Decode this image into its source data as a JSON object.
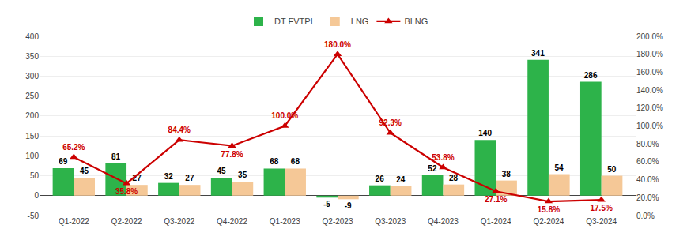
{
  "chart_data": {
    "type": "bar",
    "categories": [
      "Q1-2022",
      "Q2-2022",
      "Q3-2022",
      "Q4-2022",
      "Q1-2023",
      "Q2-2023",
      "Q3-2023",
      "Q4-2023",
      "Q1-2024",
      "Q2-2024",
      "Q3-2024"
    ],
    "series": [
      {
        "name": "DT FVTPL",
        "type": "bar",
        "color": "#2DB34A",
        "values": [
          69,
          81,
          32,
          45,
          68,
          -5,
          26,
          52,
          140,
          341,
          286
        ]
      },
      {
        "name": "LNG",
        "type": "bar",
        "color": "#F5C897",
        "values": [
          45,
          27,
          27,
          35,
          68,
          -9,
          24,
          28,
          38,
          54,
          50
        ]
      },
      {
        "name": "BLNG",
        "type": "line",
        "axis": "y2",
        "color": "#CC0000",
        "marker": "triangle-up",
        "line_style": "solid",
        "values": [
          0.652,
          0.358,
          0.844,
          0.778,
          1.0,
          1.8,
          0.923,
          0.538,
          0.271,
          0.158,
          0.175
        ],
        "value_labels": [
          "65.2%",
          "35.8%",
          "84.4%",
          "77.8%",
          "100.0%",
          "180.0%",
          "92.3%",
          "53.8%",
          "27.1%",
          "15.8%",
          "17.5%"
        ]
      }
    ],
    "ylim": [
      -50,
      400
    ],
    "yticks": [
      -50,
      0,
      50,
      100,
      150,
      200,
      250,
      300,
      350,
      400
    ],
    "y2lim": [
      0.0,
      2.0
    ],
    "y2ticks": [
      {
        "value": 0.0,
        "label": "0.0%"
      },
      {
        "value": 0.2,
        "label": "20.0%"
      },
      {
        "value": 0.4,
        "label": "40.0%"
      },
      {
        "value": 0.6,
        "label": "60.0%"
      },
      {
        "value": 0.8,
        "label": "80.0%"
      },
      {
        "value": 1.0,
        "label": "100.0%"
      },
      {
        "value": 1.2,
        "label": "120.0%"
      },
      {
        "value": 1.4,
        "label": "140.0%"
      },
      {
        "value": 1.6,
        "label": "160.0%"
      },
      {
        "value": 1.8,
        "label": "180.0%"
      },
      {
        "value": 2.0,
        "label": "200.0%"
      }
    ],
    "grid": true,
    "legend": "top",
    "data_labels": true
  }
}
